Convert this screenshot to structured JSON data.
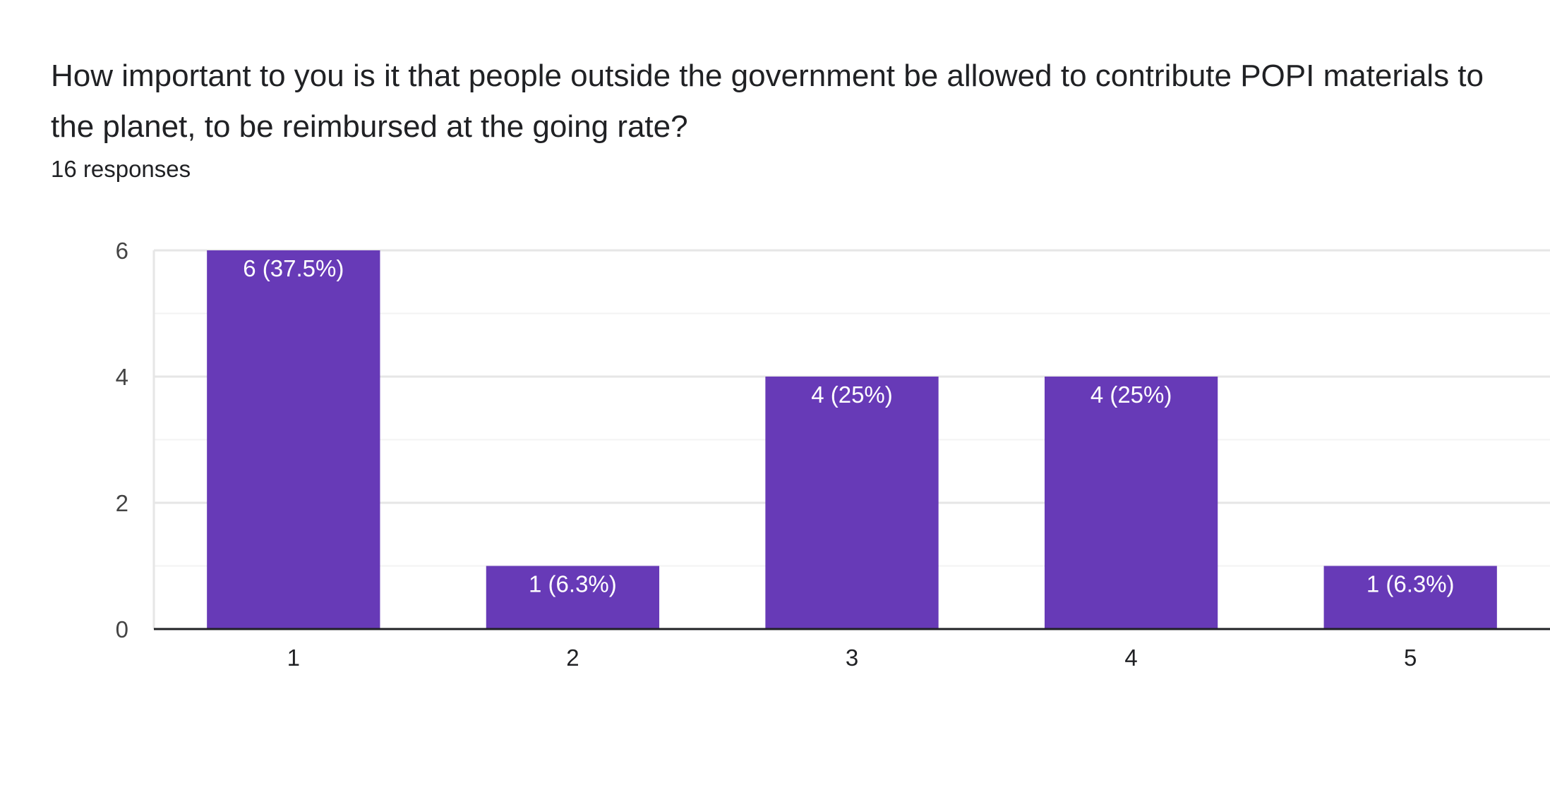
{
  "question": {
    "title": "How important to you is it that people outside the government be allowed to contribute POPI materials to the planet, to be reimbursed at the going rate?",
    "responses": "16 responses"
  },
  "colors": {
    "bar": "#673ab7",
    "bar_label": "#ffffff",
    "axis": "#202124",
    "grid_major": "#e6e6e6",
    "grid_minor": "#f3f3f3",
    "tick_text": "#444444"
  },
  "chart_data": {
    "type": "bar",
    "categories": [
      "1",
      "2",
      "3",
      "4",
      "5"
    ],
    "values": [
      6,
      1,
      4,
      4,
      1
    ],
    "data_labels": [
      "6 (37.5%)",
      "1 (6.3%)",
      "4 (25%)",
      "4 (25%)",
      "1 (6.3%)"
    ],
    "y_ticks": [
      "0",
      "2",
      "4",
      "6"
    ],
    "ylim": [
      0,
      6
    ],
    "grid": true,
    "legend": "none",
    "title": "",
    "xlabel": "",
    "ylabel": ""
  }
}
